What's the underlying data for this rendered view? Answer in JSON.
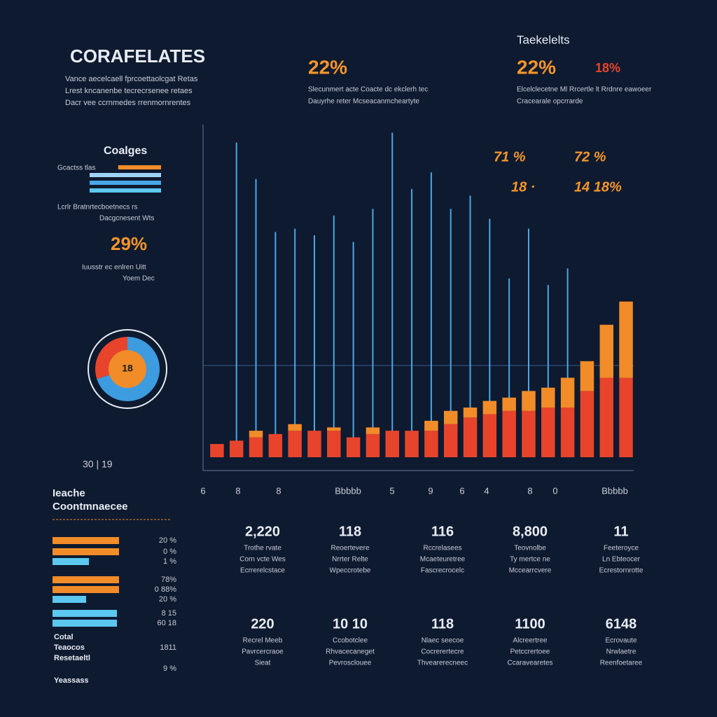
{
  "header": {
    "title": "CORAFELATES",
    "lines": [
      "Vance aecelcaell fprcoettaolcgat Retas",
      "Lrest kncanenbe tecrecrsenee retaes",
      "Dacr vee ccrnmedes rrenmornrentes"
    ]
  },
  "stat_left": {
    "value": "22%",
    "lines": [
      "Slecunmert acte Coacte dc ekclerh tec",
      "Dauyrhe reter Mcseacanmcheartyte"
    ]
  },
  "stat_right": {
    "title": "Taekelelts",
    "value": "22%",
    "value2": "18%",
    "lines": [
      "Elcelclecetne Ml Rrcertle lt Rrdnre eawoeer",
      "Cracearale opcrrarde"
    ]
  },
  "side_panel": {
    "title": "Coalges",
    "bar_label": "Gcactss tlas",
    "bars": [
      {
        "value": 60,
        "color": "#f28c28"
      },
      {
        "value": 100,
        "color": "#9fd3f5"
      },
      {
        "value": 100,
        "color": "#4aa8e8"
      },
      {
        "value": 100,
        "color": "#5cc8f0"
      }
    ],
    "lines": [
      "Lcrlr Bratnrtecboetnecs rs",
      "Dacgcnesent Wts"
    ],
    "percent": "29%",
    "lines2": [
      "Iuusstr ec enlren Uitt",
      "Yoem Dec"
    ],
    "donut": {
      "label": "18",
      "values": [
        70,
        30
      ],
      "colors": [
        "#3d9be0",
        "#e8442c"
      ]
    }
  },
  "chart_data": {
    "type": "bar",
    "categories": [
      null,
      null,
      null,
      null,
      null,
      null,
      null,
      null,
      null,
      null,
      null,
      null,
      null,
      null,
      null,
      null,
      null,
      null,
      null,
      null,
      null,
      null
    ],
    "series": [
      {
        "color": "#4aa8e8",
        "values": [
          null,
          95,
          84,
          68,
          69,
          67,
          73,
          65,
          75,
          98,
          81,
          86,
          75,
          79,
          72,
          54,
          69,
          52,
          57,
          null,
          null,
          null
        ]
      },
      {
        "color": "#e8442c",
        "values": [
          4,
          5,
          6,
          7,
          8,
          8,
          8,
          6,
          7,
          8,
          8,
          8,
          10,
          12,
          13,
          14,
          14,
          15,
          15,
          20,
          24,
          24
        ]
      },
      {
        "color": "#f28c28",
        "values": [
          0,
          0,
          2,
          0,
          2,
          0,
          1,
          0,
          2,
          0,
          0,
          3,
          4,
          3,
          4,
          4,
          6,
          6,
          9,
          9,
          16,
          23
        ]
      }
    ],
    "ylim": [
      0,
      100
    ],
    "annotations": [
      "71 %",
      "72 %",
      "18 ·",
      "14 18%"
    ],
    "x_axis_labels": [
      "6",
      "8",
      "8",
      "Bbbbb",
      "5",
      "9",
      "6",
      "4",
      "8",
      "0",
      "Bbbbb"
    ],
    "corner_label": "30 | 19"
  },
  "bottom_panel": {
    "title": [
      "Ieache",
      "Coontmnaecee"
    ],
    "bars": [
      {
        "value": 95,
        "color": "#f28c28",
        "label": "20 %"
      },
      {
        "value": 95,
        "color": "#f28c28",
        "label": "0 %"
      },
      {
        "value": 52,
        "color": "#5cc8f0",
        "label": "1 %"
      },
      {
        "value": 95,
        "color": "#f28c28",
        "label": "78%"
      },
      {
        "value": 95,
        "color": "#f28c28",
        "label": "0 88%"
      },
      {
        "value": 48,
        "color": "#5cc8f0",
        "label": "20 %"
      },
      {
        "value": 92,
        "color": "#5cc8f0",
        "label": "8 15"
      },
      {
        "value": 92,
        "color": "#5cc8f0",
        "label": "60 18"
      }
    ],
    "footer": [
      "Cotal",
      "Teaocos",
      "Resetaeltl",
      "Yeassass"
    ],
    "footer_labels": [
      "1811",
      "9 %"
    ]
  },
  "grid": [
    {
      "value": "2,220",
      "lines": [
        "Trothe rvate",
        "Corn vcte Wes",
        "Ecrrerelcstace"
      ]
    },
    {
      "value": "118",
      "lines": [
        "Reoertevere",
        "Nrrter Relte",
        "Wpeccrotebe"
      ]
    },
    {
      "value": "116",
      "lines": [
        "Rccrelasees",
        "Mcaeteuretree",
        "Fascrecrocelc"
      ]
    },
    {
      "value": "8,800",
      "lines": [
        "Teovnolbe",
        "Ty mertce ne",
        "Mccearrcvere"
      ]
    },
    {
      "value": "11",
      "lines": [
        "Feeteroyce",
        "Ln Ebteocer",
        "Ecrestornrotte"
      ]
    },
    {
      "value": "220",
      "lines": [
        "Recrel Meeb",
        "Pavrcercraoe",
        "Sieat"
      ]
    },
    {
      "value": "10 10",
      "lines": [
        "Ccobotclee",
        "Rhvacecaneget",
        "Pevrosclouee"
      ]
    },
    {
      "value": "118",
      "lines": [
        "Nlaec seecoe",
        "Cocrerertecre",
        "Thvearerecneec"
      ]
    },
    {
      "value": "1100",
      "lines": [
        "Alcreertree",
        "Petccrertoee",
        "Ccaravearetes"
      ]
    },
    {
      "value": "6148",
      "lines": [
        "Ecrovaute",
        "Nrwlaetre",
        "Reenfoetaree"
      ]
    }
  ]
}
